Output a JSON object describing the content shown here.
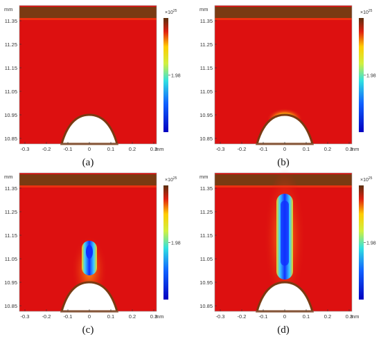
{
  "figure": {
    "panels": [
      {
        "id": "a",
        "label": "(a)",
        "plume": "tip_glow"
      },
      {
        "id": "b",
        "label": "(b)",
        "plume": "tip_glow_strong"
      },
      {
        "id": "c",
        "label": "(c)",
        "plume": "short_streamer"
      },
      {
        "id": "d",
        "label": "(d)",
        "plume": "long_streamer"
      }
    ],
    "y_unit": "mm",
    "x_unit": "mm",
    "y_ticks": [
      "11.35",
      "11.25",
      "11.15",
      "11.05",
      "10.95",
      "10.85"
    ],
    "x_ticks": [
      "-0.3",
      "-0.2",
      "-0.1",
      "0",
      "0.1",
      "0.2",
      "0.3"
    ],
    "colorbar": {
      "multiplier": "×10",
      "exponent": "25",
      "mid_value": "1.98"
    },
    "colors": {
      "background_field": "#dd1010",
      "electrode_band": "#7a3a12",
      "electrode": "#ffffff",
      "plume_core": "#1030ff",
      "plume_mid": "#30d0ff",
      "plume_edge": "#f0e020"
    }
  }
}
